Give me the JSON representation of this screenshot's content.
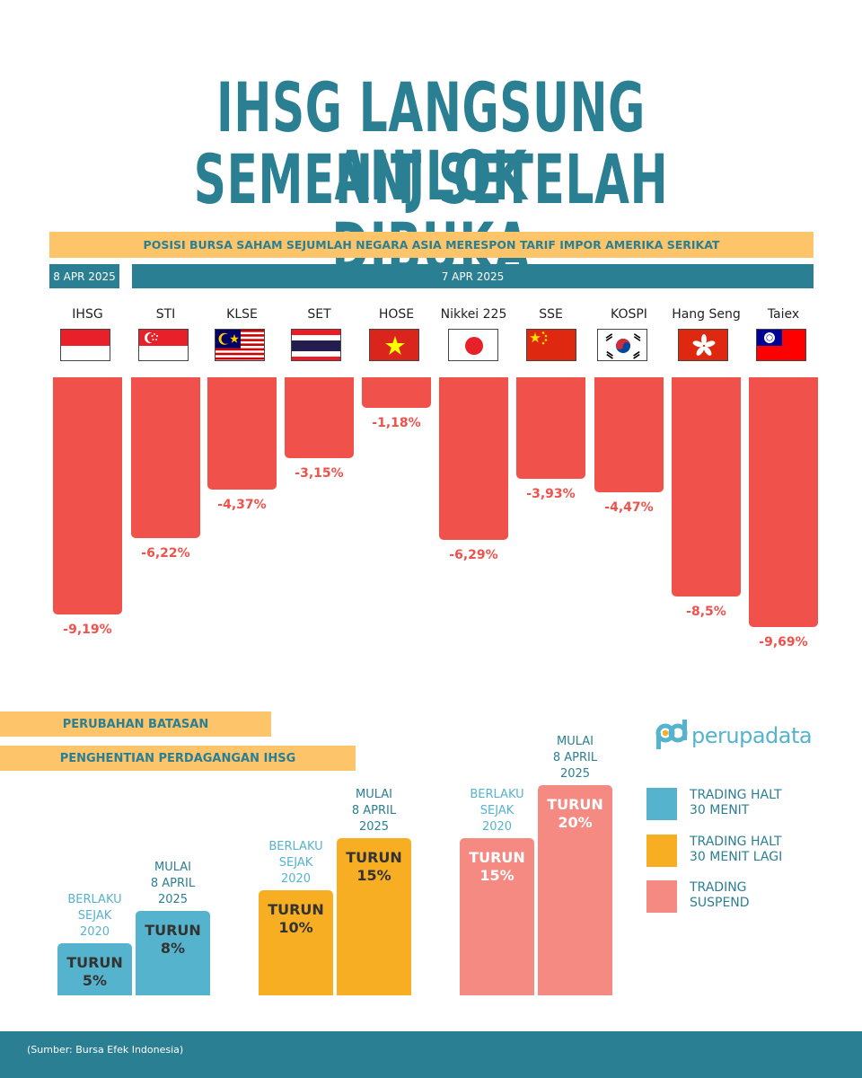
{
  "title": {
    "line1": "IHSG LANGSUNG ANJLOK",
    "line2": "SEMENIT SETELAH DIBUKA"
  },
  "subtitle_band": "POSISI BURSA SAHAM SEJUMLAH NEGARA ASIA MERESPON TARIF IMPOR AMERIKA SERIKAT",
  "date_left": "8 APR 2025",
  "date_right": "7 APR 2025",
  "colors": {
    "teal": "#2a7f92",
    "red": "#f0524b",
    "band_yellow": "#fdc46a",
    "blue": "#56b3cd",
    "orange": "#f8ae22",
    "salmon": "#f48a82"
  },
  "chart_data": [
    {
      "type": "bar",
      "categories": [
        "IHSG",
        "STI",
        "KLSE",
        "SET",
        "HOSE",
        "Nikkei 225",
        "SSE",
        "KOSPI",
        "Hang Seng",
        "Taiex"
      ],
      "values": [
        -9.19,
        -6.22,
        -4.37,
        -3.15,
        -1.18,
        -6.29,
        -3.93,
        -4.47,
        -8.5,
        -9.69
      ],
      "value_labels": [
        "-9,19%",
        "-6,22%",
        "-4,37%",
        "-3,15%",
        "-1,18%",
        "-6,29%",
        "-3,93%",
        "-4,47%",
        "-8,5%",
        "-9,69%"
      ],
      "flags": [
        "indonesia-flag",
        "singapore-flag",
        "malaysia-flag",
        "thailand-flag",
        "vietnam-flag",
        "japan-flag",
        "china-flag",
        "south-korea-flag",
        "hong-kong-flag",
        "taiwan-flag"
      ],
      "ylim": [
        -10,
        0
      ]
    },
    {
      "type": "bar",
      "title_line1": "PERUBAHAN BATASAN",
      "title_line2": "PENGHENTIAN PERDAGANGAN IHSG",
      "bars": [
        {
          "group": "blue",
          "value": 5,
          "label_top": "TURUN",
          "label_bottom": "5%",
          "caption": [
            "BERLAKU",
            "SEJAK",
            "2020"
          ]
        },
        {
          "group": "blue",
          "value": 8,
          "label_top": "TURUN",
          "label_bottom": "8%",
          "caption": [
            "MULAI",
            "8 APRIL",
            "2025"
          ]
        },
        {
          "group": "orange",
          "value": 10,
          "label_top": "TURUN",
          "label_bottom": "10%",
          "caption": [
            "BERLAKU",
            "SEJAK",
            "2020"
          ]
        },
        {
          "group": "orange",
          "value": 15,
          "label_top": "TURUN",
          "label_bottom": "15%",
          "caption": [
            "MULAI",
            "8 APRIL",
            "2025"
          ]
        },
        {
          "group": "salmon",
          "value": 15,
          "label_top": "TURUN",
          "label_bottom": "15%",
          "caption": [
            "BERLAKU",
            "SEJAK",
            "2020"
          ]
        },
        {
          "group": "salmon",
          "value": 20,
          "label_top": "TURUN",
          "label_bottom": "20%",
          "caption": [
            "MULAI",
            "8 APRIL",
            "2025"
          ]
        }
      ],
      "legend": [
        {
          "color": "blue",
          "line1": "TRADING HALT",
          "line2": "30 MENIT"
        },
        {
          "color": "orange",
          "line1": "TRADING HALT",
          "line2": "30 MENIT LAGI"
        },
        {
          "color": "salmon",
          "line1": "TRADING",
          "line2": "SUSPEND"
        }
      ]
    }
  ],
  "brand": {
    "mark": "pd",
    "name": "perupadata"
  },
  "source": "(Sumber: Bursa Efek Indonesia)"
}
